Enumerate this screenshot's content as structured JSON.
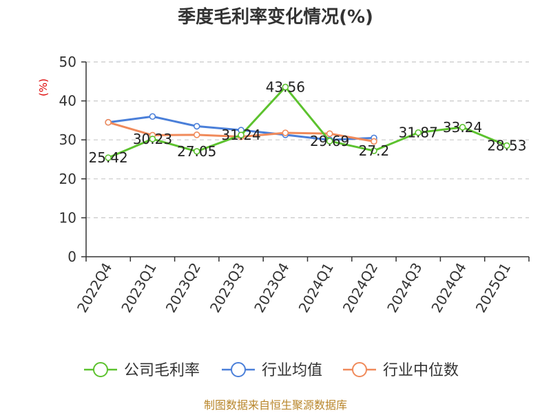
{
  "chart_data": {
    "type": "line",
    "title": "季度毛利率变化情况(%)",
    "ylabel": "(%)",
    "ylim": [
      0,
      50
    ],
    "yticks": [
      0,
      10,
      20,
      30,
      40,
      50
    ],
    "grid": true,
    "legend_position": "bottom",
    "categories": [
      "2022Q4",
      "2023Q1",
      "2023Q2",
      "2023Q3",
      "2023Q4",
      "2024Q1",
      "2024Q2",
      "2024Q3",
      "2024Q4",
      "2025Q1"
    ],
    "series": [
      {
        "name": "公司毛利率",
        "color": "#5cc22e",
        "values": [
          25.42,
          30.23,
          27.05,
          31.24,
          43.56,
          29.69,
          27.2,
          31.87,
          33.24,
          28.53
        ],
        "labels": [
          "25.42",
          "30.23",
          "27.05",
          "31.24",
          "43.56",
          "29.69",
          "27.2",
          "31.87",
          "33.24",
          "28.53"
        ]
      },
      {
        "name": "行业均值",
        "color": "#4a7fd9",
        "values": [
          34.5,
          36.0,
          33.5,
          32.5,
          31.3,
          30.0,
          30.5,
          null,
          null,
          null
        ]
      },
      {
        "name": "行业中位数",
        "color": "#f08a5a",
        "values": [
          34.5,
          31.2,
          31.3,
          30.8,
          31.8,
          31.6,
          29.6,
          null,
          null,
          null
        ]
      }
    ]
  },
  "source": "制图数据来自恒生聚源数据库"
}
